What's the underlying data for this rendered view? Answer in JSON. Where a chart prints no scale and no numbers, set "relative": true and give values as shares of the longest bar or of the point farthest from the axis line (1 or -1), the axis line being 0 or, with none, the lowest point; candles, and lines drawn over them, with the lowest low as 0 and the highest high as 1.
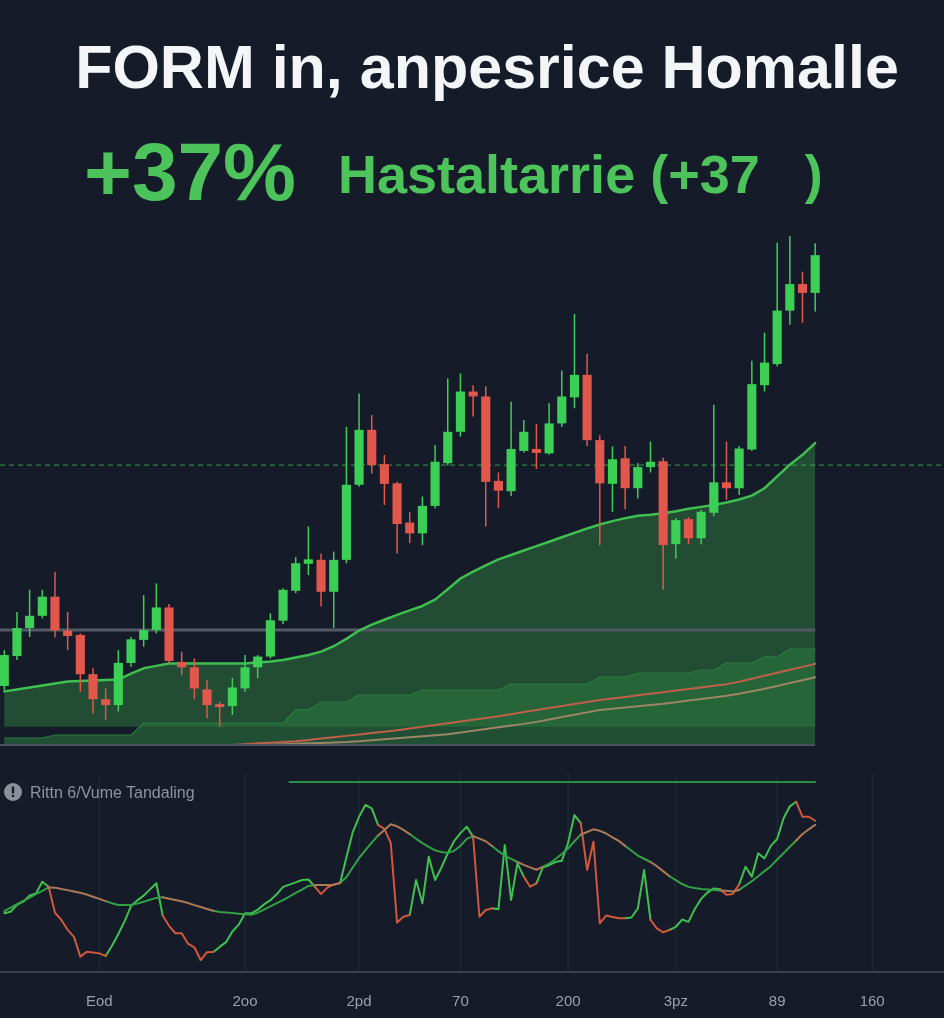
{
  "chart_data": [
    {
      "type": "candlestick",
      "title": "FORM in, anpesrice Homalle",
      "subtitle": "Hastaltarrie (+37   )",
      "annotations": [
        "+37%"
      ],
      "categories": [
        null,
        null,
        null,
        null,
        null,
        null,
        null,
        null,
        null,
        null,
        null,
        null,
        null,
        null,
        null,
        null,
        null,
        null,
        null,
        null,
        null,
        null,
        null,
        null,
        null,
        null,
        null,
        null,
        null,
        null,
        null,
        null,
        null,
        null,
        null,
        null,
        null,
        null,
        null,
        null,
        null,
        null,
        null,
        null,
        null,
        null,
        null,
        null,
        null,
        null,
        null,
        null,
        null,
        null,
        null,
        null,
        null,
        null,
        null,
        null,
        null,
        null,
        null,
        null,
        null
      ],
      "ohlc": [
        [
          0.083,
          0.156,
          0.075,
          0.146
        ],
        [
          0.144,
          0.234,
          0.136,
          0.201
        ],
        [
          0.201,
          0.279,
          0.183,
          0.226
        ],
        [
          0.226,
          0.279,
          0.221,
          0.265
        ],
        [
          0.265,
          0.316,
          0.182,
          0.196
        ],
        [
          0.196,
          0.234,
          0.156,
          0.185
        ],
        [
          0.187,
          0.19,
          0.071,
          0.107
        ],
        [
          0.107,
          0.119,
          0.027,
          0.056
        ],
        [
          0.056,
          0.078,
          0.014,
          0.044
        ],
        [
          0.044,
          0.156,
          0.031,
          0.13
        ],
        [
          0.13,
          0.183,
          0.122,
          0.178
        ],
        [
          0.177,
          0.268,
          0.163,
          0.197
        ],
        [
          0.197,
          0.292,
          0.19,
          0.243
        ],
        [
          0.243,
          0.25,
          0.129,
          0.134
        ],
        [
          0.132,
          0.153,
          0.105,
          0.121
        ],
        [
          0.121,
          0.139,
          0.056,
          0.078
        ],
        [
          0.076,
          0.095,
          0.017,
          0.044
        ],
        [
          0.046,
          0.051,
          0,
          0.04
        ],
        [
          0.042,
          0.099,
          0.024,
          0.08
        ],
        [
          0.078,
          0.146,
          0.071,
          0.121
        ],
        [
          0.121,
          0.146,
          0.099,
          0.143
        ],
        [
          0.143,
          0.231,
          0.139,
          0.217
        ],
        [
          0.216,
          0.282,
          0.209,
          0.279
        ],
        [
          0.277,
          0.346,
          0.272,
          0.333
        ],
        [
          0.332,
          0.408,
          0.309,
          0.341
        ],
        [
          0.34,
          0.353,
          0.245,
          0.275
        ],
        [
          0.275,
          0.357,
          0.201,
          0.34
        ],
        [
          0.34,
          0.611,
          0.333,
          0.493
        ],
        [
          0.493,
          0.679,
          0.489,
          0.605
        ],
        [
          0.605,
          0.635,
          0.516,
          0.533
        ],
        [
          0.535,
          0.554,
          0.452,
          0.495
        ],
        [
          0.496,
          0.499,
          0.353,
          0.413
        ],
        [
          0.416,
          0.437,
          0.374,
          0.394
        ],
        [
          0.394,
          0.469,
          0.37,
          0.45
        ],
        [
          0.45,
          0.574,
          0.445,
          0.54
        ],
        [
          0.537,
          0.71,
          0.533,
          0.601
        ],
        [
          0.601,
          0.72,
          0.591,
          0.683
        ],
        [
          0.683,
          0.696,
          0.632,
          0.673
        ],
        [
          0.673,
          0.694,
          0.408,
          0.499
        ],
        [
          0.501,
          0.518,
          0.445,
          0.481
        ],
        [
          0.48,
          0.662,
          0.47,
          0.566
        ],
        [
          0.562,
          0.625,
          0.559,
          0.601
        ],
        [
          0.566,
          0.617,
          0.525,
          0.558
        ],
        [
          0.557,
          0.659,
          0.554,
          0.618
        ],
        [
          0.618,
          0.726,
          0.611,
          0.673
        ],
        [
          0.671,
          0.841,
          0.649,
          0.717
        ],
        [
          0.717,
          0.76,
          0.572,
          0.584
        ],
        [
          0.584,
          0.594,
          0.37,
          0.496
        ],
        [
          0.495,
          0.571,
          0.438,
          0.545
        ],
        [
          0.547,
          0.572,
          0.443,
          0.486
        ],
        [
          0.486,
          0.537,
          0.465,
          0.529
        ],
        [
          0.529,
          0.581,
          0.518,
          0.54
        ],
        [
          0.541,
          0.548,
          0.279,
          0.37
        ],
        [
          0.372,
          0.425,
          0.343,
          0.421
        ],
        [
          0.423,
          0.427,
          0.372,
          0.384
        ],
        [
          0.384,
          0.442,
          0.372,
          0.438
        ],
        [
          0.436,
          0.656,
          0.429,
          0.498
        ],
        [
          0.498,
          0.581,
          0.462,
          0.486
        ],
        [
          0.486,
          0.572,
          0.472,
          0.567
        ],
        [
          0.565,
          0.746,
          0.562,
          0.698
        ],
        [
          0.696,
          0.803,
          0.683,
          0.742
        ],
        [
          0.739,
          0.986,
          0.734,
          0.848
        ],
        [
          0.848,
          1,
          0.819,
          0.902
        ],
        [
          0.902,
          0.927,
          0.823,
          0.884
        ],
        [
          0.884,
          0.985,
          0.846,
          0.961
        ]
      ],
      "colors": [
        "#3ccf55",
        "#3ccf55",
        "#3ccf55",
        "#3ccf55",
        "#e2574c",
        "#e2574c",
        "#e2574c",
        "#e2574c",
        "#e2574c",
        "#3ccf55",
        "#3ccf55",
        "#3ccf55",
        "#3ccf55",
        "#e2574c",
        "#e2574c",
        "#e2574c",
        "#e2574c",
        "#e2574c",
        "#3ccf55",
        "#3ccf55",
        "#3ccf55",
        "#3ccf55",
        "#3ccf55",
        "#3ccf55",
        "#3ccf55",
        "#e2574c",
        "#3ccf55",
        "#3ccf55",
        "#3ccf55",
        "#e2574c",
        "#e2574c",
        "#e2574c",
        "#e2574c",
        "#3ccf55",
        "#3ccf55",
        "#3ccf55",
        "#3ccf55",
        "#e2574c",
        "#e2574c",
        "#e2574c",
        "#3ccf55",
        "#3ccf55",
        "#e2574c",
        "#3ccf55",
        "#3ccf55",
        "#3ccf55",
        "#e2574c",
        "#e2574c",
        "#3ccf55",
        "#e2574c",
        "#3ccf55",
        "#3ccf55",
        "#e2574c",
        "#3ccf55",
        "#e2574c",
        "#3ccf55",
        "#3ccf55",
        "#e2574c",
        "#3ccf55",
        "#3ccf55",
        "#3ccf55",
        "#3ccf55",
        "#3ccf55",
        "#e2574c",
        "#3ccf55"
      ],
      "series": [
        {
          "type": "area",
          "color": "#3fbf4f",
          "values": [
            0.072,
            0.076,
            0.08,
            0.084,
            0.088,
            0.092,
            0.093,
            0.094,
            0.095,
            0.096,
            0.108,
            0.119,
            0.124,
            0.129,
            0.129,
            0.129,
            0.129,
            0.129,
            0.129,
            0.129,
            0.131,
            0.133,
            0.136,
            0.141,
            0.146,
            0.153,
            0.164,
            0.179,
            0.196,
            0.208,
            0.218,
            0.228,
            0.237,
            0.246,
            0.259,
            0.28,
            0.302,
            0.316,
            0.329,
            0.341,
            0.35,
            0.359,
            0.368,
            0.377,
            0.386,
            0.395,
            0.404,
            0.412,
            0.419,
            0.425,
            0.43,
            0.432,
            0.435,
            0.439,
            0.444,
            0.448,
            0.452,
            0.457,
            0.463,
            0.471,
            0.486,
            0.51,
            0.534,
            0.554,
            0.578
          ]
        }
      ],
      "relative": true,
      "ref_lines": [
        {
          "axis": "y",
          "value": 0.533,
          "color": "#2f8a40",
          "line_style": "dashed"
        }
      ]
    },
    {
      "type": "line",
      "categories": [
        null,
        null,
        null,
        null,
        null,
        null,
        null,
        null,
        null,
        null,
        null,
        null,
        null,
        null,
        null,
        null,
        null,
        null,
        null,
        null,
        null,
        null,
        null,
        null,
        null,
        null,
        null,
        null,
        null,
        null,
        null,
        null,
        null,
        null,
        null,
        null,
        null,
        null,
        null,
        null,
        null,
        null,
        null,
        null,
        null,
        null,
        null,
        null,
        null,
        null,
        null,
        null,
        null,
        null,
        null,
        null,
        null,
        null,
        null,
        null,
        null,
        null,
        null,
        null,
        null
      ],
      "series": [
        {
          "type": "area",
          "color": "#2a7a3c",
          "values": [
            0.073,
            0.073,
            0.073,
            0.073,
            0.104,
            0.104,
            0.104,
            0.104,
            0.104,
            0.104,
            0.104,
            0.229,
            0.229,
            0.229,
            0.229,
            0.229,
            0.229,
            0.229,
            0.229,
            0.229,
            0.229,
            0.229,
            0.229,
            0.365,
            0.365,
            0.448,
            0.448,
            0.448,
            0.521,
            0.521,
            0.521,
            0.521,
            0.521,
            0.573,
            0.573,
            0.573,
            0.573,
            0.573,
            0.573,
            0.573,
            0.635,
            0.635,
            0.635,
            0.635,
            0.635,
            0.635,
            0.635,
            0.708,
            0.708,
            0.708,
            0.75,
            0.75,
            0.75,
            0.75,
            0.75,
            0.781,
            0.781,
            0.854,
            0.854,
            0.854,
            0.917,
            0.917,
            1,
            1,
            1
          ]
        },
        {
          "color": "#c0604a",
          "values": [
            null,
            null,
            null,
            null,
            null,
            null,
            null,
            null,
            null,
            null,
            null,
            null,
            null,
            null,
            null,
            null,
            null,
            null,
            0,
            0.009,
            0.017,
            0.024,
            0.032,
            0.04,
            0.052,
            0.067,
            0.081,
            0.095,
            0.11,
            0.124,
            0.139,
            0.153,
            0.171,
            0.189,
            0.208,
            0.226,
            0.245,
            0.263,
            0.282,
            0.3,
            0.321,
            0.343,
            0.364,
            0.385,
            0.406,
            0.427,
            0.448,
            0.469,
            0.485,
            0.501,
            0.518,
            0.534,
            0.55,
            0.567,
            0.583,
            0.6,
            0.617,
            0.634,
            0.658,
            0.69,
            0.722,
            0.753,
            0.783,
            0.814,
            0.845
          ]
        },
        {
          "color": "#9a8566",
          "values": [
            null,
            null,
            null,
            null,
            null,
            null,
            null,
            null,
            null,
            null,
            null,
            null,
            null,
            null,
            null,
            null,
            null,
            null,
            null,
            null,
            0,
            0.003,
            0.008,
            0.012,
            0.017,
            0.021,
            0.025,
            0.03,
            0.038,
            0.049,
            0.06,
            0.07,
            0.081,
            0.092,
            0.102,
            0.113,
            0.129,
            0.148,
            0.166,
            0.184,
            0.202,
            0.22,
            0.241,
            0.266,
            0.291,
            0.315,
            0.34,
            0.365,
            0.378,
            0.391,
            0.404,
            0.417,
            0.43,
            0.446,
            0.463,
            0.48,
            0.496,
            0.513,
            0.534,
            0.56,
            0.585,
            0.614,
            0.645,
            0.675,
            0.706
          ]
        }
      ],
      "relative": true
    },
    {
      "type": "line",
      "title": "Rittn 6/Vume Tandaling",
      "categories": [
        null,
        null,
        null,
        null,
        null,
        null,
        null,
        null,
        null,
        null,
        null,
        null,
        null,
        null,
        null,
        "Eod",
        null,
        null,
        null,
        null,
        null,
        null,
        null,
        null,
        null,
        null,
        null,
        null,
        null,
        null,
        null,
        null,
        null,
        null,
        null,
        null,
        null,
        null,
        "2oo",
        null,
        null,
        null,
        null,
        null,
        null,
        null,
        null,
        null,
        null,
        null,
        null,
        null,
        null,
        null,
        null,
        null,
        "2pd",
        null,
        null,
        null,
        null,
        null,
        null,
        null,
        null,
        null,
        null,
        null,
        null,
        null,
        null,
        null,
        "70",
        null,
        null,
        null,
        null,
        null,
        null,
        null,
        null,
        null,
        null,
        null,
        null,
        null,
        null,
        null,
        null,
        "200",
        null,
        null,
        null,
        null,
        null,
        null,
        null,
        null,
        null,
        null,
        null,
        null,
        null,
        null,
        null,
        null,
        "3pz",
        null,
        null,
        null,
        null,
        null,
        null,
        null,
        null,
        null,
        null,
        null,
        null,
        null,
        null,
        null,
        "89",
        null,
        null,
        null,
        null,
        null,
        null,
        null,
        null,
        null,
        null,
        null,
        null,
        null,
        null,
        "160"
      ],
      "series": [
        {
          "color": "#3fc04f",
          "values": [
            0.309,
            0.317,
            0.353,
            0.37,
            0.403,
            0.413,
            0.475,
            0.449,
            null,
            null,
            null,
            null,
            null,
            null,
            null,
            null,
            0.084,
            0.138,
            0.2,
            0.268,
            0.347,
            0.377,
            0.402,
            0.435,
            0.467,
            0.297,
            null,
            null,
            null,
            null,
            null,
            null,
            null,
            0.105,
            0.132,
            0.157,
            0.213,
            0.249,
            0.309,
            0.309,
            0.328,
            0.356,
            0.378,
            0.409,
            0.448,
            0.46,
            0.472,
            0.484,
            0.487,
            0.45,
            null,
            null,
            null,
            0.467,
            0.603,
            0.735,
            0.817,
            0.879,
            0.861,
            0.774,
            null,
            null,
            null,
            null,
            0.3,
            0.484,
            0.362,
            0.607,
            0.484,
            0.55,
            0.625,
            0.689,
            0.731,
            0.765,
            0.712,
            null,
            null,
            0.335,
            0.33,
            0.668,
            0.379,
            0.572,
            0.502,
            null,
            0.467,
            0.55,
            0.562,
            0.579,
            0.585,
            0.68,
            0.826,
            0.783,
            null,
            null,
            null,
            null,
            null,
            null,
            0.283,
            0.287,
            0.334,
            0.537,
            0.275,
            null,
            null,
            0.221,
            0.238,
            0.276,
            0.264,
            0.332,
            0.385,
            0.418,
            0.44,
            0.436,
            null,
            null,
            0.461,
            0.554,
            0.502,
            0.625,
            0.598,
            0.664,
            0.7,
            0.808,
            0.872,
            0.896,
            null,
            null,
            null,
            null,
            null,
            null,
            null,
            null,
            null,
            null,
            null,
            null
          ]
        },
        {
          "color": "#d0583b",
          "values": [
            null,
            null,
            null,
            null,
            null,
            null,
            null,
            0.449,
            0.312,
            0.274,
            0.222,
            0.185,
            0.081,
            0.107,
            0.103,
            0.098,
            0.084,
            null,
            null,
            null,
            null,
            null,
            null,
            null,
            null,
            0.297,
            0.243,
            0.204,
            0.204,
            0.149,
            0.13,
            0.063,
            0.104,
            0.105,
            null,
            null,
            null,
            null,
            null,
            null,
            null,
            null,
            null,
            null,
            null,
            null,
            null,
            null,
            null,
            0.45,
            0.41,
            0.444,
            0.461,
            0.467,
            null,
            null,
            null,
            null,
            null,
            0.774,
            0.753,
            0.68,
            0.26,
            0.291,
            0.3,
            null,
            null,
            null,
            null,
            null,
            null,
            null,
            null,
            null,
            0.712,
            0.291,
            0.326,
            0.335,
            null,
            null,
            null,
            null,
            0.502,
            0.449,
            0.467,
            null,
            null,
            null,
            null,
            null,
            null,
            0.783,
            0.537,
            0.686,
            0.256,
            0.297,
            0.29,
            0.283,
            0.283,
            null,
            null,
            null,
            0.275,
            0.23,
            0.209,
            0.221,
            null,
            null,
            null,
            null,
            null,
            null,
            null,
            0.436,
            0.406,
            0.411,
            0.461,
            null,
            null,
            null,
            null,
            null,
            null,
            null,
            null,
            0.896,
            0.817,
            0.817,
            0.796,
            null,
            null,
            null,
            null,
            null,
            null,
            null,
            null,
            null
          ]
        },
        {
          "color": "#33a045",
          "values": [
            0.321,
            0.339,
            0.357,
            0.374,
            0.392,
            0.41,
            0.427,
            0.445,
            null,
            null,
            null,
            null,
            null,
            null,
            null,
            null,
            0.373,
            0.362,
            0.353,
            0.353,
            0.353,
            0.36,
            0.37,
            0.38,
            0.39,
            0.393,
            null,
            null,
            null,
            null,
            null,
            null,
            null,
            0.322,
            0.316,
            0.313,
            0.31,
            0.307,
            0.304,
            0.301,
            0.312,
            0.328,
            0.345,
            0.362,
            0.378,
            0.397,
            0.416,
            0.434,
            0.453,
            0.458,
            null,
            null,
            null,
            0.469,
            0.499,
            0.55,
            0.6,
            0.641,
            0.681,
            0.719,
            null,
            null,
            null,
            null,
            0.726,
            0.701,
            0.678,
            0.659,
            0.64,
            0.632,
            0.627,
            0.637,
            0.664,
            0.701,
            0.715,
            null,
            null,
            0.663,
            0.636,
            0.612,
            0.595,
            0.579,
            null,
            null,
            null,
            0.553,
            0.57,
            0.595,
            0.621,
            0.65,
            0.688,
            0.723,
            null,
            null,
            null,
            null,
            null,
            null,
            0.664,
            0.638,
            0.613,
            0.596,
            0.579,
            null,
            null,
            0.504,
            0.484,
            0.463,
            0.448,
            0.442,
            0.437,
            0.434,
            0.431,
            0.429,
            null,
            null,
            0.432,
            0.455,
            0.478,
            0.504,
            0.531,
            0.557,
            0.592,
            0.625,
            0.659,
            0.692,
            null,
            null,
            null,
            null,
            null,
            null,
            null,
            null,
            null,
            null,
            null,
            null
          ]
        },
        {
          "color": "#ad7a55",
          "values": [
            null,
            null,
            null,
            null,
            null,
            null,
            null,
            0.445,
            0.444,
            0.437,
            0.431,
            0.424,
            0.417,
            0.408,
            0.396,
            0.385,
            0.373,
            null,
            null,
            null,
            null,
            null,
            null,
            null,
            null,
            0.393,
            0.386,
            0.379,
            0.372,
            0.363,
            0.352,
            0.342,
            0.332,
            0.322,
            null,
            null,
            null,
            null,
            null,
            null,
            null,
            null,
            null,
            null,
            null,
            null,
            null,
            null,
            null,
            0.458,
            0.458,
            0.458,
            0.459,
            0.469,
            null,
            null,
            null,
            null,
            null,
            0.719,
            0.748,
            0.778,
            0.767,
            0.748,
            0.726,
            null,
            null,
            null,
            null,
            null,
            null,
            null,
            null,
            null,
            0.715,
            0.702,
            0.688,
            0.663,
            null,
            null,
            null,
            0.579,
            0.564,
            0.551,
            0.538,
            0.553,
            null,
            null,
            null,
            null,
            null,
            0.723,
            0.737,
            0.751,
            0.743,
            0.729,
            0.709,
            0.69,
            0.664,
            null,
            null,
            null,
            0.579,
            0.557,
            0.531,
            0.504,
            null,
            null,
            null,
            null,
            null,
            null,
            null,
            0.429,
            0.427,
            0.424,
            0.432,
            null,
            null,
            null,
            null,
            null,
            null,
            null,
            null,
            0.692,
            0.726,
            0.751,
            0.774,
            null,
            null,
            null,
            null,
            null,
            null,
            null,
            null,
            null
          ]
        },
        {
          "color": "#2a8f3e",
          "values": [
            null,
            null,
            null,
            null,
            null,
            null,
            null,
            null,
            null,
            null,
            null,
            null,
            null,
            null,
            null,
            null,
            null,
            null,
            null,
            null,
            null,
            null,
            null,
            null,
            null,
            null,
            null,
            null,
            null,
            null,
            null,
            null,
            null,
            null,
            null,
            null,
            null,
            null,
            null,
            null,
            null,
            null,
            null,
            null,
            null,
            1,
            1,
            1,
            1,
            1,
            1,
            1,
            1,
            1,
            1,
            1,
            1,
            1,
            1,
            1,
            1,
            1,
            1,
            1,
            1,
            1,
            1,
            1,
            1,
            1,
            1,
            1,
            1,
            1,
            1,
            1,
            1,
            1,
            1,
            1,
            1,
            1,
            1,
            1,
            1,
            1,
            1,
            1,
            1,
            1,
            1,
            1,
            1,
            1,
            1,
            1,
            1,
            1,
            1,
            1,
            1,
            1,
            1,
            1,
            1,
            1,
            1,
            1,
            1,
            1,
            1,
            1,
            1,
            1,
            1,
            1,
            1,
            1,
            1,
            1,
            1,
            1,
            1,
            1,
            1,
            1,
            1,
            1,
            1,
            null,
            null,
            null,
            null,
            null,
            null,
            null,
            null,
            null
          ]
        }
      ],
      "relative": true,
      "tick_labels": "x",
      "grid": "x"
    }
  ]
}
